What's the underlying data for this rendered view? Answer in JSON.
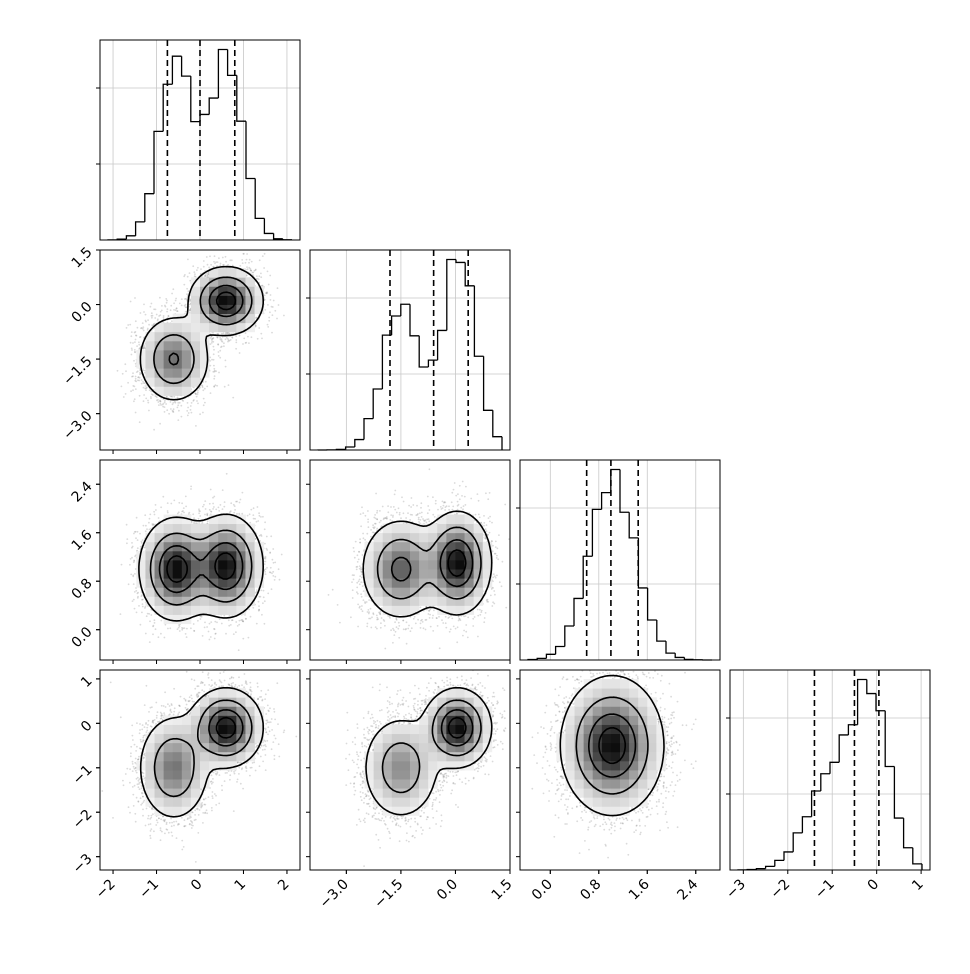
{
  "chart_data": {
    "type": "corner",
    "grid": true,
    "colors": {
      "hist": "#000000",
      "quantile": "#000000",
      "points": "#7a7a7a",
      "density": "#000000"
    },
    "quantile_style": "dashed",
    "params": [
      {
        "index": 0,
        "range": [
          -2.3,
          2.3
        ],
        "ticks": [
          -2,
          -1,
          0,
          1,
          2
        ],
        "tick_labels": [
          "−2",
          "−1",
          "0",
          "1",
          "2"
        ],
        "quantiles": [
          -0.75,
          0.0,
          0.8
        ],
        "modes": [
          {
            "mean": -0.55,
            "sd": 0.38,
            "w": 0.5
          },
          {
            "mean": 0.6,
            "sd": 0.38,
            "w": 0.5
          }
        ]
      },
      {
        "index": 1,
        "range": [
          -4.0,
          1.5
        ],
        "ticks": [
          -3.0,
          -1.5,
          0.0,
          1.5
        ],
        "tick_labels": [
          "−3.0",
          "−1.5",
          "0.0",
          "1.5"
        ],
        "quantiles": [
          -1.8,
          -0.6,
          0.35
        ],
        "modes": [
          {
            "mean": -1.5,
            "sd": 0.5,
            "w": 0.45
          },
          {
            "mean": 0.1,
            "sd": 0.45,
            "w": 0.55
          }
        ]
      },
      {
        "index": 2,
        "range": [
          -0.5,
          2.8
        ],
        "ticks": [
          0.0,
          0.8,
          1.6,
          2.4
        ],
        "tick_labels": [
          "0.0",
          "0.8",
          "1.6",
          "2.4"
        ],
        "quantiles": [
          0.6,
          1.0,
          1.45
        ],
        "modes": [
          {
            "mean": 1.02,
            "sd": 0.38,
            "w": 1.0
          }
        ]
      },
      {
        "index": 3,
        "range": [
          -3.3,
          1.2
        ],
        "ticks": [
          -3,
          -2,
          -1,
          0,
          1
        ],
        "tick_labels": [
          "−3",
          "−2",
          "−1",
          "0",
          "1"
        ],
        "quantiles": [
          -1.4,
          -0.5,
          0.05
        ],
        "modes": [
          {
            "mean": -1.0,
            "sd": 0.55,
            "w": 0.45
          },
          {
            "mean": -0.1,
            "sd": 0.4,
            "w": 0.55
          }
        ]
      }
    ],
    "pairs": [
      {
        "x": 0,
        "y": 1,
        "clusters": [
          {
            "cx": -0.6,
            "cy": -1.5,
            "sx": 0.38,
            "sy": 0.55,
            "w": 0.45
          },
          {
            "cx": 0.6,
            "cy": 0.1,
            "sx": 0.38,
            "sy": 0.42,
            "w": 0.55
          }
        ]
      },
      {
        "x": 0,
        "y": 2,
        "clusters": [
          {
            "cx": -0.55,
            "cy": 1.0,
            "sx": 0.38,
            "sy": 0.38,
            "w": 0.5
          },
          {
            "cx": 0.6,
            "cy": 1.05,
            "sx": 0.38,
            "sy": 0.38,
            "w": 0.5
          }
        ]
      },
      {
        "x": 1,
        "y": 2,
        "clusters": [
          {
            "cx": -1.5,
            "cy": 1.0,
            "sx": 0.5,
            "sy": 0.38,
            "w": 0.45
          },
          {
            "cx": 0.05,
            "cy": 1.1,
            "sx": 0.42,
            "sy": 0.38,
            "w": 0.55
          }
        ]
      },
      {
        "x": 0,
        "y": 3,
        "clusters": [
          {
            "cx": -0.6,
            "cy": -1.0,
            "sx": 0.38,
            "sy": 0.55,
            "w": 0.45
          },
          {
            "cx": 0.6,
            "cy": -0.1,
            "sx": 0.38,
            "sy": 0.4,
            "w": 0.55
          }
        ]
      },
      {
        "x": 1,
        "y": 3,
        "clusters": [
          {
            "cx": -1.5,
            "cy": -1.0,
            "sx": 0.5,
            "sy": 0.55,
            "w": 0.45
          },
          {
            "cx": 0.05,
            "cy": -0.1,
            "sx": 0.42,
            "sy": 0.4,
            "w": 0.55
          }
        ]
      },
      {
        "x": 2,
        "y": 3,
        "clusters": [
          {
            "cx": 1.02,
            "cy": -0.5,
            "sx": 0.38,
            "sy": 0.7,
            "w": 1.0
          }
        ]
      }
    ]
  }
}
